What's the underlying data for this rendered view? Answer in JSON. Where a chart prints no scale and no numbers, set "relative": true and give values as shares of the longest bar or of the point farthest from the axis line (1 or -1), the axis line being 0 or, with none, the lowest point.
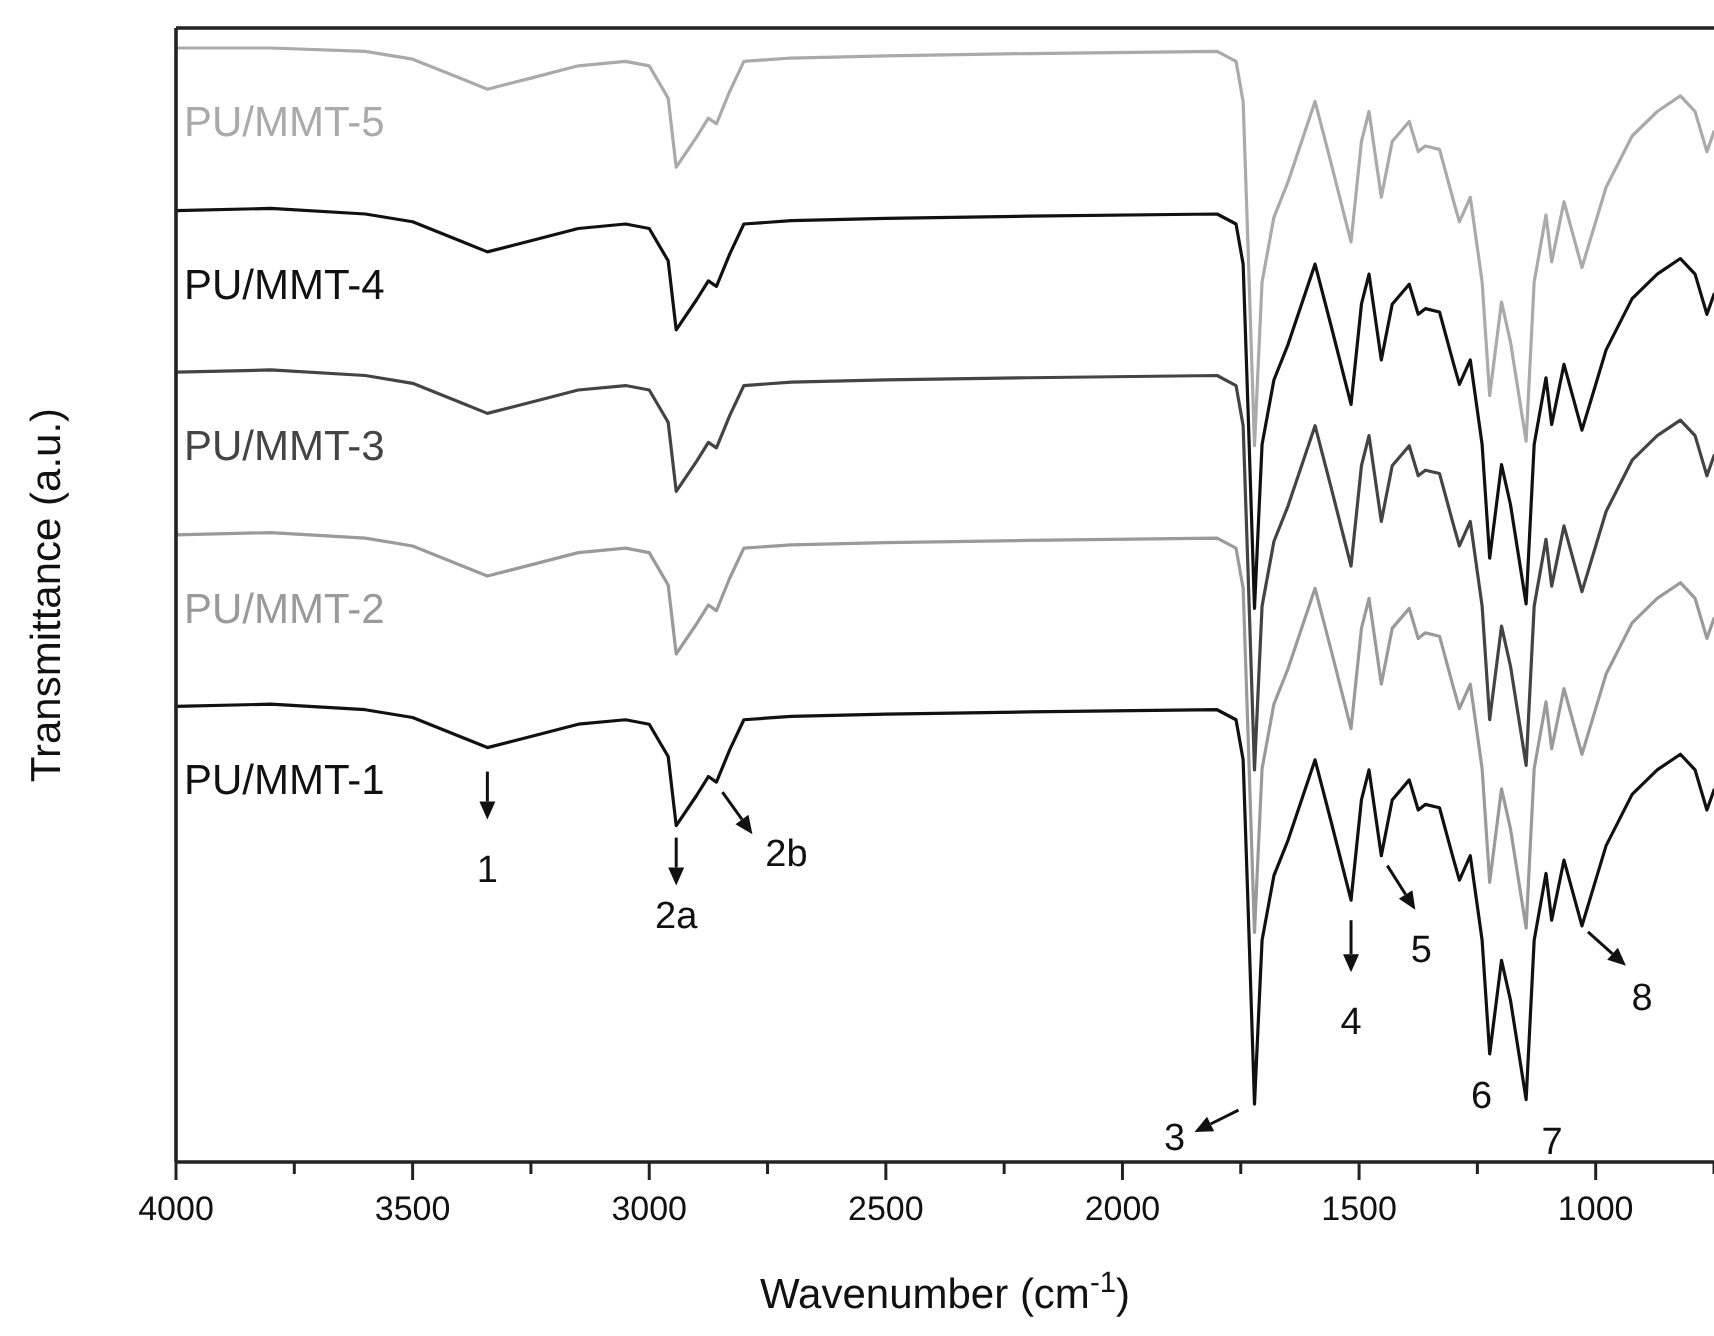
{
  "chart_data": {
    "type": "line",
    "relative": true,
    "xlabel": "Wavenumber (cm$^{-1}$)",
    "ylabel": "Transmittance (a.u.)",
    "xlim": [
      4000,
      750
    ],
    "xticks": [
      4000,
      {
        "value": 3750,
        "label": null
      },
      3500,
      {
        "value": 3250,
        "label": null
      },
      3000,
      {
        "value": 2750,
        "label": null
      },
      2500,
      {
        "value": 2250,
        "label": null
      },
      2000,
      {
        "value": 1750,
        "label": null
      },
      1500,
      {
        "value": 1250,
        "label": null
      },
      1000,
      {
        "value": 750,
        "label": null
      }
    ],
    "grid": false,
    "marker": "none",
    "line_style": "solid",
    "x": [
      4000,
      3800,
      3600,
      3500,
      3400,
      3342,
      3250,
      3150,
      3050,
      3000,
      2960,
      2943,
      2900,
      2875,
      2858,
      2830,
      2800,
      2700,
      2500,
      2200,
      1800,
      1760,
      1745,
      1735,
      1721,
      1705,
      1680,
      1650,
      1593,
      1560,
      1517,
      1495,
      1479,
      1453,
      1430,
      1394,
      1375,
      1360,
      1330,
      1300,
      1288,
      1265,
      1240,
      1224,
      1199,
      1180,
      1147,
      1130,
      1105,
      1093,
      1067,
      1029,
      1000,
      978,
      923,
      870,
      821,
      790,
      765,
      750
    ],
    "series": [
      {
        "name": "PU/MMT-1",
        "color": "#111111",
        "values": [
          0.409,
          0.411,
          0.406,
          0.399,
          0.382,
          0.372,
          0.382,
          0.393,
          0.397,
          0.393,
          0.364,
          0.302,
          0.329,
          0.346,
          0.341,
          0.37,
          0.397,
          0.4,
          0.402,
          0.404,
          0.406,
          0.397,
          0.361,
          0.235,
          0.052,
          0.199,
          0.257,
          0.289,
          0.361,
          0.307,
          0.235,
          0.325,
          0.352,
          0.275,
          0.325,
          0.343,
          0.316,
          0.321,
          0.318,
          0.271,
          0.253,
          0.275,
          0.199,
          0.097,
          0.181,
          0.145,
          0.056,
          0.199,
          0.259,
          0.217,
          0.271,
          0.212,
          0.253,
          0.284,
          0.33,
          0.352,
          0.366,
          0.352,
          0.316,
          0.334
        ]
      },
      {
        "name": "PU/MMT-2",
        "color": "#9a9a9a",
        "values": [
          0.563,
          0.565,
          0.56,
          0.553,
          0.536,
          0.526,
          0.536,
          0.547,
          0.551,
          0.547,
          0.518,
          0.456,
          0.483,
          0.5,
          0.495,
          0.524,
          0.551,
          0.554,
          0.556,
          0.558,
          0.56,
          0.551,
          0.515,
          0.389,
          0.206,
          0.353,
          0.411,
          0.443,
          0.515,
          0.461,
          0.389,
          0.479,
          0.506,
          0.429,
          0.479,
          0.497,
          0.47,
          0.475,
          0.472,
          0.425,
          0.407,
          0.429,
          0.353,
          0.251,
          0.335,
          0.299,
          0.21,
          0.353,
          0.413,
          0.371,
          0.425,
          0.366,
          0.407,
          0.438,
          0.484,
          0.506,
          0.52,
          0.506,
          0.47,
          0.488
        ]
      },
      {
        "name": "PU/MMT-3",
        "color": "#444444",
        "values": [
          0.709,
          0.711,
          0.706,
          0.699,
          0.682,
          0.672,
          0.682,
          0.693,
          0.697,
          0.693,
          0.664,
          0.602,
          0.629,
          0.646,
          0.641,
          0.67,
          0.697,
          0.7,
          0.702,
          0.704,
          0.706,
          0.697,
          0.661,
          0.535,
          0.352,
          0.499,
          0.557,
          0.589,
          0.661,
          0.607,
          0.535,
          0.625,
          0.652,
          0.575,
          0.625,
          0.643,
          0.616,
          0.621,
          0.618,
          0.571,
          0.553,
          0.575,
          0.499,
          0.397,
          0.481,
          0.445,
          0.356,
          0.499,
          0.559,
          0.517,
          0.571,
          0.512,
          0.553,
          0.584,
          0.63,
          0.652,
          0.666,
          0.652,
          0.616,
          0.634
        ]
      },
      {
        "name": "PU/MMT-4",
        "color": "#111111",
        "values": [
          0.854,
          0.856,
          0.851,
          0.844,
          0.827,
          0.817,
          0.827,
          0.838,
          0.842,
          0.838,
          0.809,
          0.747,
          0.774,
          0.791,
          0.786,
          0.815,
          0.842,
          0.845,
          0.847,
          0.849,
          0.851,
          0.842,
          0.806,
          0.68,
          0.497,
          0.644,
          0.702,
          0.734,
          0.806,
          0.752,
          0.68,
          0.77,
          0.797,
          0.72,
          0.77,
          0.788,
          0.761,
          0.766,
          0.763,
          0.716,
          0.698,
          0.72,
          0.644,
          0.542,
          0.626,
          0.59,
          0.501,
          0.644,
          0.704,
          0.662,
          0.716,
          0.657,
          0.698,
          0.729,
          0.775,
          0.797,
          0.811,
          0.797,
          0.761,
          0.779
        ]
      },
      {
        "name": "PU/MMT-5",
        "color": "#aaaaaa",
        "values": [
          1.0,
          1.0,
          0.997,
          0.99,
          0.973,
          0.963,
          0.973,
          0.984,
          0.988,
          0.984,
          0.955,
          0.893,
          0.92,
          0.937,
          0.932,
          0.961,
          0.988,
          0.991,
          0.993,
          0.995,
          0.997,
          0.988,
          0.952,
          0.826,
          0.643,
          0.79,
          0.848,
          0.88,
          0.952,
          0.898,
          0.826,
          0.916,
          0.943,
          0.866,
          0.916,
          0.934,
          0.907,
          0.912,
          0.909,
          0.862,
          0.844,
          0.866,
          0.79,
          0.688,
          0.772,
          0.736,
          0.647,
          0.79,
          0.85,
          0.808,
          0.862,
          0.803,
          0.844,
          0.875,
          0.921,
          0.943,
          0.957,
          0.943,
          0.907,
          0.925
        ]
      }
    ],
    "annotations": [
      {
        "text": "1",
        "x": 3342,
        "y": 0.372
      },
      {
        "text": "2a",
        "x": 2943,
        "y": 0.302
      },
      {
        "text": "2b",
        "x": 2858,
        "y": 0.341
      },
      {
        "text": "3",
        "x": 1721,
        "y": 0.052
      },
      {
        "text": "4",
        "x": 1517,
        "y": 0.235
      },
      {
        "text": "5",
        "x": 1453,
        "y": 0.275
      },
      {
        "text": "6",
        "x": 1224,
        "y": 0.097
      },
      {
        "text": "7",
        "x": 1147,
        "y": 0.056
      },
      {
        "text": "8",
        "x": 1029,
        "y": 0.212
      }
    ]
  }
}
